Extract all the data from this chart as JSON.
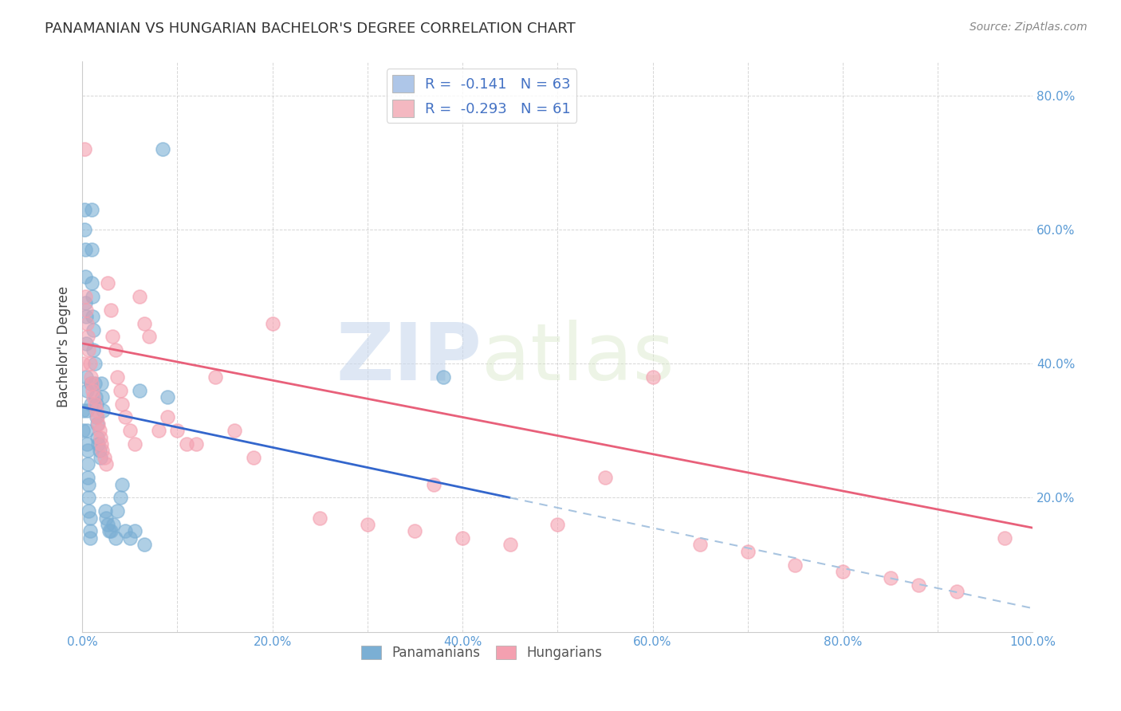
{
  "title": "PANAMANIAN VS HUNGARIAN BACHELOR'S DEGREE CORRELATION CHART",
  "source": "Source: ZipAtlas.com",
  "ylabel": "Bachelor's Degree",
  "xlim": [
    0,
    1.0
  ],
  "ylim": [
    0,
    0.85
  ],
  "xticks": [
    0.0,
    0.1,
    0.2,
    0.3,
    0.4,
    0.5,
    0.6,
    0.7,
    0.8,
    0.9,
    1.0
  ],
  "xtick_labels": [
    "0.0%",
    "",
    "20.0%",
    "",
    "40.0%",
    "",
    "60.0%",
    "",
    "80.0%",
    "",
    "100.0%"
  ],
  "yticks": [
    0.2,
    0.4,
    0.6,
    0.8
  ],
  "ytick_labels": [
    "20.0%",
    "40.0%",
    "60.0%",
    "80.0%"
  ],
  "legend_entries": [
    {
      "label": "R =  -0.141   N = 63",
      "color": "#aec6e8"
    },
    {
      "label": "R =  -0.293   N = 61",
      "color": "#f4b8c1"
    }
  ],
  "panamanian_color": "#7bafd4",
  "hungarian_color": "#f4a0b0",
  "trend_pan_color": "#3366cc",
  "trend_hun_color": "#e8607a",
  "trend_ext_color": "#a8c4e0",
  "pan_x": [
    0.001,
    0.001,
    0.002,
    0.002,
    0.003,
    0.003,
    0.003,
    0.004,
    0.004,
    0.004,
    0.005,
    0.005,
    0.005,
    0.005,
    0.006,
    0.006,
    0.006,
    0.007,
    0.007,
    0.007,
    0.008,
    0.008,
    0.008,
    0.009,
    0.009,
    0.01,
    0.01,
    0.01,
    0.011,
    0.011,
    0.012,
    0.012,
    0.013,
    0.013,
    0.014,
    0.015,
    0.015,
    0.016,
    0.016,
    0.017,
    0.018,
    0.019,
    0.02,
    0.021,
    0.022,
    0.024,
    0.025,
    0.027,
    0.028,
    0.03,
    0.033,
    0.035,
    0.037,
    0.04,
    0.042,
    0.045,
    0.05,
    0.055,
    0.06,
    0.065,
    0.085,
    0.09,
    0.38
  ],
  "pan_y": [
    0.33,
    0.3,
    0.63,
    0.6,
    0.57,
    0.53,
    0.49,
    0.47,
    0.43,
    0.38,
    0.36,
    0.33,
    0.3,
    0.28,
    0.27,
    0.25,
    0.23,
    0.22,
    0.2,
    0.18,
    0.17,
    0.15,
    0.14,
    0.37,
    0.34,
    0.63,
    0.57,
    0.52,
    0.5,
    0.47,
    0.45,
    0.42,
    0.4,
    0.37,
    0.35,
    0.34,
    0.32,
    0.31,
    0.29,
    0.28,
    0.27,
    0.26,
    0.37,
    0.35,
    0.33,
    0.18,
    0.17,
    0.16,
    0.15,
    0.15,
    0.16,
    0.14,
    0.18,
    0.2,
    0.22,
    0.15,
    0.14,
    0.15,
    0.36,
    0.13,
    0.72,
    0.35,
    0.38
  ],
  "hun_x": [
    0.001,
    0.002,
    0.003,
    0.004,
    0.005,
    0.006,
    0.007,
    0.008,
    0.009,
    0.01,
    0.011,
    0.012,
    0.013,
    0.015,
    0.016,
    0.017,
    0.018,
    0.019,
    0.02,
    0.021,
    0.023,
    0.025,
    0.027,
    0.03,
    0.032,
    0.035,
    0.037,
    0.04,
    0.042,
    0.045,
    0.05,
    0.055,
    0.06,
    0.065,
    0.07,
    0.08,
    0.09,
    0.1,
    0.11,
    0.12,
    0.14,
    0.16,
    0.18,
    0.2,
    0.25,
    0.3,
    0.35,
    0.37,
    0.4,
    0.45,
    0.5,
    0.55,
    0.6,
    0.65,
    0.7,
    0.75,
    0.8,
    0.85,
    0.88,
    0.92,
    0.97
  ],
  "hun_y": [
    0.4,
    0.72,
    0.5,
    0.48,
    0.46,
    0.44,
    0.42,
    0.4,
    0.38,
    0.37,
    0.36,
    0.35,
    0.34,
    0.33,
    0.32,
    0.31,
    0.3,
    0.29,
    0.28,
    0.27,
    0.26,
    0.25,
    0.52,
    0.48,
    0.44,
    0.42,
    0.38,
    0.36,
    0.34,
    0.32,
    0.3,
    0.28,
    0.5,
    0.46,
    0.44,
    0.3,
    0.32,
    0.3,
    0.28,
    0.28,
    0.38,
    0.3,
    0.26,
    0.46,
    0.17,
    0.16,
    0.15,
    0.22,
    0.14,
    0.13,
    0.16,
    0.23,
    0.38,
    0.13,
    0.12,
    0.1,
    0.09,
    0.08,
    0.07,
    0.06,
    0.14
  ]
}
